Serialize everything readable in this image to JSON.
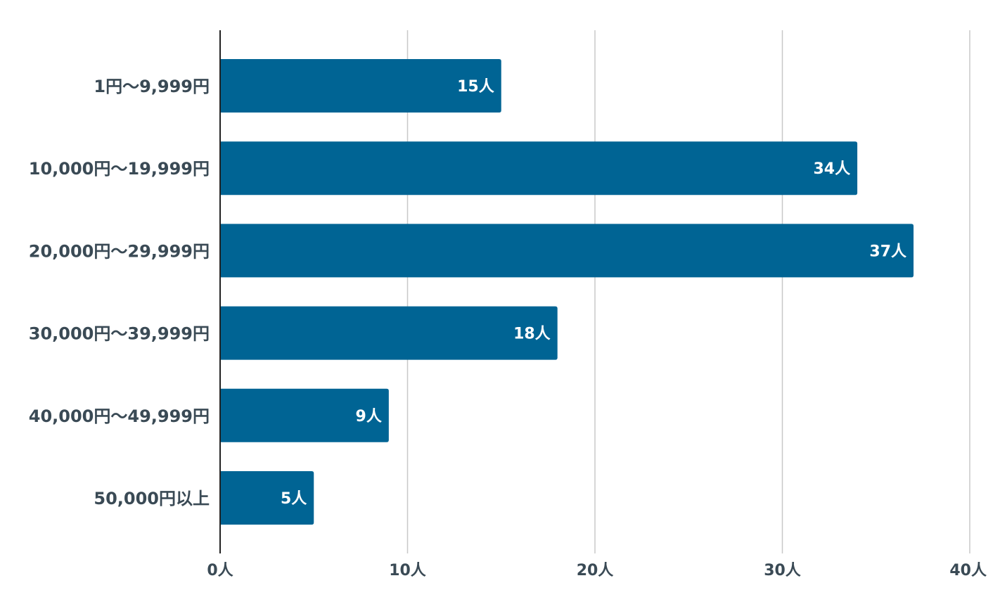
{
  "chart_data": {
    "type": "bar",
    "orientation": "horizontal",
    "categories": [
      "1円〜9,999円",
      "10,000円〜19,999円",
      "20,000円〜29,999円",
      "30,000円〜39,999円",
      "40,000円〜49,999円",
      "50,000円以上"
    ],
    "values": [
      15,
      34,
      37,
      18,
      9,
      5
    ],
    "data_labels": [
      "15人",
      "34人",
      "37人",
      "18人",
      "9人",
      "5人"
    ],
    "xlim": [
      0,
      40
    ],
    "xticks": [
      0,
      10,
      20,
      30,
      40
    ],
    "xtick_labels": [
      "0人",
      "10人",
      "20人",
      "30人",
      "40人"
    ],
    "title": "",
    "xlabel": "",
    "ylabel": "",
    "grid": true,
    "legend": "none",
    "colors": {
      "bar": "#006494",
      "grid": "#c8c8c8",
      "axis": "#222222",
      "label_text": "#3a4a55",
      "data_label_text": "#ffffff"
    }
  }
}
